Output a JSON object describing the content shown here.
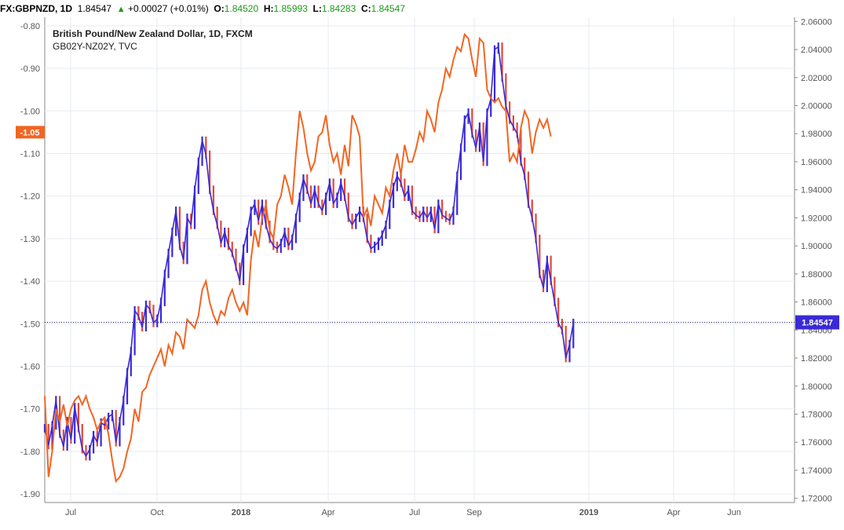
{
  "header": {
    "symbol": "FX:GBPNZD, 1D",
    "last": "1.84547",
    "change": "+0.00027 (+0.01%)",
    "open_label": "O:",
    "open": "1.84520",
    "high_label": "H:",
    "high": "1.85993",
    "low_label": "L:",
    "low": "1.84283",
    "close_label": "C:",
    "close": "1.84547"
  },
  "chart_data": {
    "type": "line",
    "title": "British Pound/New Zealand Dollar, 1D, FXCM",
    "subtitle": "GB02Y-NZ02Y, TVC",
    "x_ticks": [
      "Jul",
      "Oct",
      "2018",
      "Apr",
      "Jul",
      "Sep",
      "2019",
      "Apr",
      "Jun"
    ],
    "x_tick_bold": [
      false,
      false,
      true,
      false,
      false,
      false,
      true,
      false,
      false
    ],
    "left_axis": {
      "ticks": [
        "-0.80",
        "-0.90",
        "-1.00",
        "-1.10",
        "-1.20",
        "-1.30",
        "-1.40",
        "-1.50",
        "-1.60",
        "-1.70",
        "-1.80",
        "-1.90"
      ],
      "range": [
        -1.92,
        -0.78
      ],
      "current_label": "-1.05"
    },
    "right_axis": {
      "ticks": [
        "2.06000",
        "2.04000",
        "2.02000",
        "2.00000",
        "1.98000",
        "1.96000",
        "1.94000",
        "1.92000",
        "1.90000",
        "1.88000",
        "1.86000",
        "1.84000",
        "1.82000",
        "1.80000",
        "1.78000",
        "1.76000",
        "1.74000",
        "1.72000"
      ],
      "range": [
        1.717,
        2.063
      ],
      "current_label": "1.84547",
      "current_value": 1.84547
    },
    "grid": true,
    "colors": {
      "price": "#3a2ad6",
      "price_alt": "#e0473e",
      "spread": "#f26522",
      "grid": "#e6ebf0",
      "axis": "#555555"
    },
    "series": [
      {
        "axis": "right",
        "style": "bars",
        "points": [
          [
            0,
            1.77
          ],
          [
            5,
            1.758
          ],
          [
            10,
            1.772
          ],
          [
            15,
            1.79
          ],
          [
            20,
            1.766
          ],
          [
            25,
            1.757
          ],
          [
            30,
            1.775
          ],
          [
            35,
            1.762
          ],
          [
            40,
            1.785
          ],
          [
            45,
            1.77
          ],
          [
            50,
            1.755
          ],
          [
            55,
            1.75
          ],
          [
            60,
            1.755
          ],
          [
            65,
            1.765
          ],
          [
            70,
            1.76
          ],
          [
            75,
            1.774
          ],
          [
            80,
            1.772
          ],
          [
            85,
            1.778
          ],
          [
            90,
            1.78
          ],
          [
            95,
            1.76
          ],
          [
            100,
            1.775
          ],
          [
            105,
            1.79
          ],
          [
            110,
            1.81
          ],
          [
            115,
            1.825
          ],
          [
            120,
            1.854
          ],
          [
            125,
            1.85
          ],
          [
            130,
            1.842
          ],
          [
            135,
            1.858
          ],
          [
            140,
            1.855
          ],
          [
            145,
            1.845
          ],
          [
            150,
            1.848
          ],
          [
            155,
            1.86
          ],
          [
            160,
            1.88
          ],
          [
            165,
            1.895
          ],
          [
            170,
            1.91
          ],
          [
            175,
            1.925
          ],
          [
            180,
            1.9
          ],
          [
            185,
            1.89
          ],
          [
            190,
            1.92
          ],
          [
            195,
            1.915
          ],
          [
            200,
            1.94
          ],
          [
            205,
            1.96
          ],
          [
            210,
            1.975
          ],
          [
            215,
            1.965
          ],
          [
            220,
            1.94
          ],
          [
            225,
            1.925
          ],
          [
            230,
            1.915
          ],
          [
            235,
            1.902
          ],
          [
            240,
            1.91
          ],
          [
            245,
            1.9
          ],
          [
            250,
            1.895
          ],
          [
            255,
            1.885
          ],
          [
            260,
            1.875
          ],
          [
            265,
            1.898
          ],
          [
            270,
            1.91
          ],
          [
            275,
            1.925
          ],
          [
            280,
            1.93
          ],
          [
            285,
            1.918
          ],
          [
            290,
            1.93
          ],
          [
            295,
            1.915
          ],
          [
            300,
            1.905
          ],
          [
            305,
            1.9
          ],
          [
            310,
            1.898
          ],
          [
            315,
            1.902
          ],
          [
            320,
            1.91
          ],
          [
            325,
            1.9
          ],
          [
            330,
            1.905
          ],
          [
            335,
            1.92
          ],
          [
            340,
            1.935
          ],
          [
            345,
            1.948
          ],
          [
            350,
            1.94
          ],
          [
            355,
            1.93
          ],
          [
            360,
            1.94
          ],
          [
            365,
            1.93
          ],
          [
            370,
            1.925
          ],
          [
            375,
            1.935
          ],
          [
            380,
            1.945
          ],
          [
            385,
            1.93
          ],
          [
            390,
            1.935
          ],
          [
            395,
            1.945
          ],
          [
            400,
            1.935
          ],
          [
            405,
            1.92
          ],
          [
            410,
            1.915
          ],
          [
            415,
            1.92
          ],
          [
            420,
            1.925
          ],
          [
            425,
            1.92
          ],
          [
            430,
            1.905
          ],
          [
            435,
            1.898
          ],
          [
            440,
            1.9
          ],
          [
            445,
            1.903
          ],
          [
            450,
            1.908
          ],
          [
            455,
            1.915
          ],
          [
            460,
            1.93
          ],
          [
            465,
            1.942
          ],
          [
            470,
            1.95
          ],
          [
            475,
            1.945
          ],
          [
            480,
            1.935
          ],
          [
            485,
            1.94
          ],
          [
            490,
            1.925
          ],
          [
            495,
            1.922
          ],
          [
            500,
            1.92
          ],
          [
            505,
            1.925
          ],
          [
            510,
            1.92
          ],
          [
            515,
            1.925
          ],
          [
            520,
            1.912
          ],
          [
            525,
            1.93
          ],
          [
            530,
            1.922
          ],
          [
            535,
            1.92
          ],
          [
            540,
            1.918
          ],
          [
            545,
            1.925
          ],
          [
            550,
            1.95
          ],
          [
            555,
            1.97
          ],
          [
            560,
            1.99
          ],
          [
            565,
            1.995
          ],
          [
            570,
            1.98
          ],
          [
            575,
            1.97
          ],
          [
            580,
            1.985
          ],
          [
            585,
            1.96
          ],
          [
            590,
            1.995
          ],
          [
            595,
            2.005
          ],
          [
            600,
            2.04
          ],
          [
            605,
            2.042
          ],
          [
            610,
            2.02
          ],
          [
            615,
            2.0
          ],
          [
            620,
            1.99
          ],
          [
            625,
            1.985
          ],
          [
            630,
            1.98
          ],
          [
            635,
            1.96
          ],
          [
            640,
            1.95
          ],
          [
            645,
            1.93
          ],
          [
            650,
            1.92
          ],
          [
            655,
            1.905
          ],
          [
            660,
            1.88
          ],
          [
            665,
            1.87
          ],
          [
            670,
            1.89
          ],
          [
            675,
            1.875
          ],
          [
            680,
            1.86
          ],
          [
            685,
            1.845
          ],
          [
            690,
            1.84
          ],
          [
            695,
            1.82
          ],
          [
            700,
            1.83
          ],
          [
            705,
            1.845
          ]
        ]
      },
      {
        "axis": "left",
        "style": "line",
        "points": [
          [
            0,
            -1.67
          ],
          [
            5,
            -1.86
          ],
          [
            10,
            -1.8
          ],
          [
            15,
            -1.7
          ],
          [
            20,
            -1.73
          ],
          [
            25,
            -1.69
          ],
          [
            30,
            -1.74
          ],
          [
            35,
            -1.7
          ],
          [
            40,
            -1.68
          ],
          [
            45,
            -1.67
          ],
          [
            50,
            -1.69
          ],
          [
            55,
            -1.67
          ],
          [
            60,
            -1.7
          ],
          [
            65,
            -1.72
          ],
          [
            70,
            -1.75
          ],
          [
            75,
            -1.73
          ],
          [
            80,
            -1.72
          ],
          [
            85,
            -1.76
          ],
          [
            90,
            -1.82
          ],
          [
            95,
            -1.87
          ],
          [
            100,
            -1.86
          ],
          [
            105,
            -1.84
          ],
          [
            110,
            -1.8
          ],
          [
            115,
            -1.77
          ],
          [
            120,
            -1.7
          ],
          [
            125,
            -1.73
          ],
          [
            130,
            -1.66
          ],
          [
            135,
            -1.65
          ],
          [
            140,
            -1.62
          ],
          [
            145,
            -1.6
          ],
          [
            150,
            -1.58
          ],
          [
            155,
            -1.56
          ],
          [
            160,
            -1.6
          ],
          [
            165,
            -1.55
          ],
          [
            170,
            -1.57
          ],
          [
            175,
            -1.52
          ],
          [
            180,
            -1.53
          ],
          [
            185,
            -1.56
          ],
          [
            190,
            -1.49
          ],
          [
            195,
            -1.5
          ],
          [
            200,
            -1.51
          ],
          [
            205,
            -1.48
          ],
          [
            210,
            -1.42
          ],
          [
            215,
            -1.4
          ],
          [
            220,
            -1.45
          ],
          [
            225,
            -1.48
          ],
          [
            230,
            -1.5
          ],
          [
            235,
            -1.47
          ],
          [
            240,
            -1.48
          ],
          [
            245,
            -1.44
          ],
          [
            250,
            -1.42
          ],
          [
            255,
            -1.45
          ],
          [
            260,
            -1.47
          ],
          [
            265,
            -1.45
          ],
          [
            270,
            -1.48
          ],
          [
            275,
            -1.35
          ],
          [
            280,
            -1.28
          ],
          [
            285,
            -1.32
          ],
          [
            290,
            -1.25
          ],
          [
            295,
            -1.22
          ],
          [
            300,
            -1.28
          ],
          [
            305,
            -1.3
          ],
          [
            310,
            -1.22
          ],
          [
            315,
            -1.2
          ],
          [
            320,
            -1.15
          ],
          [
            325,
            -1.18
          ],
          [
            330,
            -1.22
          ],
          [
            335,
            -1.1
          ],
          [
            340,
            -1.0
          ],
          [
            345,
            -1.04
          ],
          [
            350,
            -1.1
          ],
          [
            355,
            -1.14
          ],
          [
            360,
            -1.12
          ],
          [
            365,
            -1.06
          ],
          [
            370,
            -1.05
          ],
          [
            375,
            -1.01
          ],
          [
            380,
            -1.08
          ],
          [
            385,
            -1.12
          ],
          [
            390,
            -1.1
          ],
          [
            395,
            -1.15
          ],
          [
            400,
            -1.08
          ],
          [
            405,
            -1.13
          ],
          [
            410,
            -1.01
          ],
          [
            415,
            -1.03
          ],
          [
            420,
            -1.06
          ],
          [
            425,
            -1.25
          ],
          [
            430,
            -1.23
          ],
          [
            435,
            -1.27
          ],
          [
            440,
            -1.2
          ],
          [
            445,
            -1.22
          ],
          [
            450,
            -1.24
          ],
          [
            455,
            -1.18
          ],
          [
            460,
            -1.2
          ],
          [
            465,
            -1.14
          ],
          [
            470,
            -1.1
          ],
          [
            475,
            -1.15
          ],
          [
            480,
            -1.08
          ],
          [
            485,
            -1.12
          ],
          [
            490,
            -1.12
          ],
          [
            495,
            -1.09
          ],
          [
            500,
            -1.05
          ],
          [
            505,
            -1.07
          ],
          [
            510,
            -1.0
          ],
          [
            515,
            -1.02
          ],
          [
            520,
            -1.05
          ],
          [
            525,
            -0.98
          ],
          [
            530,
            -0.95
          ],
          [
            535,
            -0.9
          ],
          [
            540,
            -0.92
          ],
          [
            545,
            -0.88
          ],
          [
            550,
            -0.85
          ],
          [
            555,
            -0.86
          ],
          [
            560,
            -0.82
          ],
          [
            565,
            -0.83
          ],
          [
            570,
            -0.88
          ],
          [
            575,
            -0.92
          ],
          [
            580,
            -0.83
          ],
          [
            585,
            -0.84
          ],
          [
            590,
            -0.95
          ],
          [
            595,
            -0.97
          ],
          [
            600,
            -0.98
          ],
          [
            605,
            -0.97
          ],
          [
            610,
            -0.99
          ],
          [
            615,
            -1.0
          ],
          [
            620,
            -1.12
          ],
          [
            625,
            -1.1
          ],
          [
            630,
            -1.12
          ],
          [
            635,
            -1.04
          ],
          [
            640,
            -1.0
          ],
          [
            645,
            -1.02
          ],
          [
            650,
            -1.1
          ],
          [
            655,
            -1.05
          ],
          [
            660,
            -1.02
          ],
          [
            665,
            -1.04
          ],
          [
            670,
            -1.02
          ],
          [
            675,
            -1.06
          ]
        ]
      }
    ]
  }
}
